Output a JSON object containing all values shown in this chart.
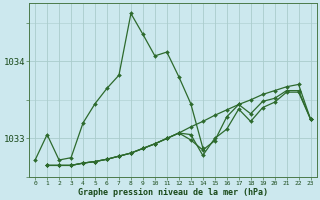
{
  "bg_color": "#cce8ee",
  "grid_color": "#aacccc",
  "line_color": "#2d6a2d",
  "title": "Graphe pression niveau de la mer (hPa)",
  "ylabel_ticks": [
    1033,
    1034
  ],
  "xlim": [
    -0.5,
    23.5
  ],
  "ylim": [
    1032.5,
    1034.75
  ],
  "lines": [
    {
      "x": [
        0,
        1,
        2,
        3,
        4,
        5,
        6,
        7,
        8,
        9,
        10,
        11,
        12,
        13,
        14
      ],
      "y": [
        1032.72,
        1033.05,
        1032.72,
        1032.75,
        1033.2,
        1033.45,
        1033.65,
        1033.82,
        1034.62,
        1034.35,
        1034.07,
        1034.12,
        1033.8,
        1033.45,
        1032.88
      ]
    },
    {
      "x": [
        1,
        2,
        3,
        4,
        5,
        6,
        7,
        8,
        9,
        10,
        11,
        12,
        13,
        14,
        15,
        16,
        17,
        18,
        19,
        20,
        21,
        22,
        23
      ],
      "y": [
        1032.65,
        1032.65,
        1032.65,
        1032.68,
        1032.7,
        1032.73,
        1032.77,
        1032.81,
        1032.87,
        1032.93,
        1033.0,
        1033.07,
        1033.15,
        1033.22,
        1033.3,
        1033.37,
        1033.44,
        1033.5,
        1033.57,
        1033.62,
        1033.67,
        1033.7,
        1033.25
      ]
    },
    {
      "x": [
        1,
        2,
        3,
        4,
        5,
        6,
        7,
        8,
        9,
        10,
        11,
        12,
        13,
        14,
        15,
        16,
        17,
        18,
        19,
        20,
        21,
        22,
        23
      ],
      "y": [
        1032.65,
        1032.65,
        1032.65,
        1032.68,
        1032.7,
        1032.73,
        1032.77,
        1032.81,
        1032.87,
        1032.93,
        1033.0,
        1033.07,
        1032.98,
        1032.85,
        1032.97,
        1033.28,
        1033.44,
        1033.32,
        1033.48,
        1033.52,
        1033.62,
        1033.62,
        1033.25
      ]
    },
    {
      "x": [
        1,
        2,
        3,
        4,
        5,
        6,
        7,
        8,
        9,
        10,
        11,
        12,
        13,
        14,
        15,
        16,
        17,
        18,
        19,
        20,
        21,
        22,
        23
      ],
      "y": [
        1032.65,
        1032.65,
        1032.65,
        1032.68,
        1032.7,
        1032.73,
        1032.77,
        1032.81,
        1032.87,
        1032.93,
        1033.0,
        1033.07,
        1033.05,
        1032.78,
        1033.0,
        1033.12,
        1033.38,
        1033.22,
        1033.4,
        1033.47,
        1033.6,
        1033.6,
        1033.25
      ]
    }
  ]
}
